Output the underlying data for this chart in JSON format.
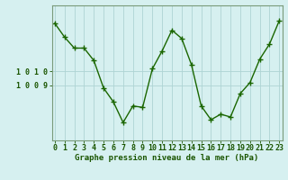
{
  "x": [
    0,
    1,
    2,
    3,
    4,
    5,
    6,
    7,
    8,
    9,
    10,
    11,
    12,
    13,
    14,
    15,
    16,
    17,
    18,
    19,
    20,
    21,
    22,
    23
  ],
  "y": [
    1013.5,
    1012.5,
    1011.7,
    1011.7,
    1010.8,
    1008.8,
    1007.8,
    1006.3,
    1007.5,
    1007.4,
    1010.2,
    1011.5,
    1013.0,
    1012.4,
    1010.5,
    1007.5,
    1006.5,
    1006.9,
    1006.7,
    1008.4,
    1009.2,
    1010.9,
    1012.0,
    1013.7
  ],
  "line_color": "#1a6600",
  "marker": "+",
  "marker_size": 4,
  "line_width": 1.0,
  "bg_color": "#d6f0f0",
  "grid_color": "#aed4d4",
  "axis_color": "#7a9a7a",
  "tick_color": "#1a5500",
  "label_color": "#1a5500",
  "xlabel": "Graphe pression niveau de la mer (hPa)",
  "xlabel_fontsize": 6.5,
  "ylabel_left_ticks": [
    1009,
    1010
  ],
  "ylim": [
    1005.0,
    1014.8
  ],
  "xlim": [
    -0.3,
    23.3
  ],
  "tick_fontsize": 6.0,
  "ytick_labels": [
    "1 0 0 9",
    "1 0 1 0"
  ]
}
